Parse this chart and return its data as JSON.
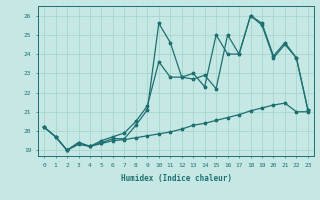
{
  "xlabel": "Humidex (Indice chaleur)",
  "xlim": [
    -0.5,
    23.5
  ],
  "ylim": [
    18.7,
    26.5
  ],
  "xticks": [
    0,
    1,
    2,
    3,
    4,
    5,
    6,
    7,
    8,
    9,
    10,
    11,
    12,
    13,
    14,
    15,
    16,
    17,
    18,
    19,
    20,
    21,
    22,
    23
  ],
  "yticks": [
    19,
    20,
    21,
    22,
    23,
    24,
    25,
    26
  ],
  "bg_color": "#c5e8e5",
  "line_color": "#1e7070",
  "grid_color": "#a8d5d0",
  "line1_x": [
    0,
    1,
    2,
    3,
    4,
    5,
    6,
    7,
    8,
    9,
    10,
    11,
    12,
    13,
    14,
    15,
    16,
    17,
    18,
    19,
    20,
    21,
    22,
    23
  ],
  "line1_y": [
    20.2,
    19.7,
    19.0,
    19.4,
    19.2,
    19.4,
    19.6,
    19.6,
    20.3,
    21.1,
    25.6,
    24.6,
    22.8,
    22.7,
    22.9,
    22.2,
    25.0,
    24.0,
    26.0,
    25.5,
    23.8,
    24.5,
    23.8,
    21.1
  ],
  "line2_x": [
    0,
    1,
    2,
    3,
    4,
    5,
    6,
    7,
    8,
    9,
    10,
    11,
    12,
    13,
    14,
    15,
    16,
    17,
    18,
    19,
    20,
    21,
    22,
    23
  ],
  "line2_y": [
    20.2,
    19.7,
    19.0,
    19.4,
    19.2,
    19.5,
    19.7,
    19.9,
    20.5,
    21.3,
    23.6,
    22.8,
    22.8,
    23.0,
    22.3,
    25.0,
    24.0,
    24.0,
    26.0,
    25.6,
    23.9,
    24.6,
    23.8,
    21.1
  ],
  "line3_x": [
    0,
    1,
    2,
    3,
    4,
    5,
    6,
    7,
    8,
    9,
    10,
    11,
    12,
    13,
    14,
    15,
    16,
    17,
    18,
    19,
    20,
    21,
    22,
    23
  ],
  "line3_y": [
    20.2,
    19.7,
    19.0,
    19.3,
    19.2,
    19.35,
    19.5,
    19.55,
    19.65,
    19.75,
    19.85,
    19.95,
    20.1,
    20.3,
    20.4,
    20.55,
    20.7,
    20.85,
    21.05,
    21.2,
    21.35,
    21.45,
    21.0,
    21.0
  ]
}
